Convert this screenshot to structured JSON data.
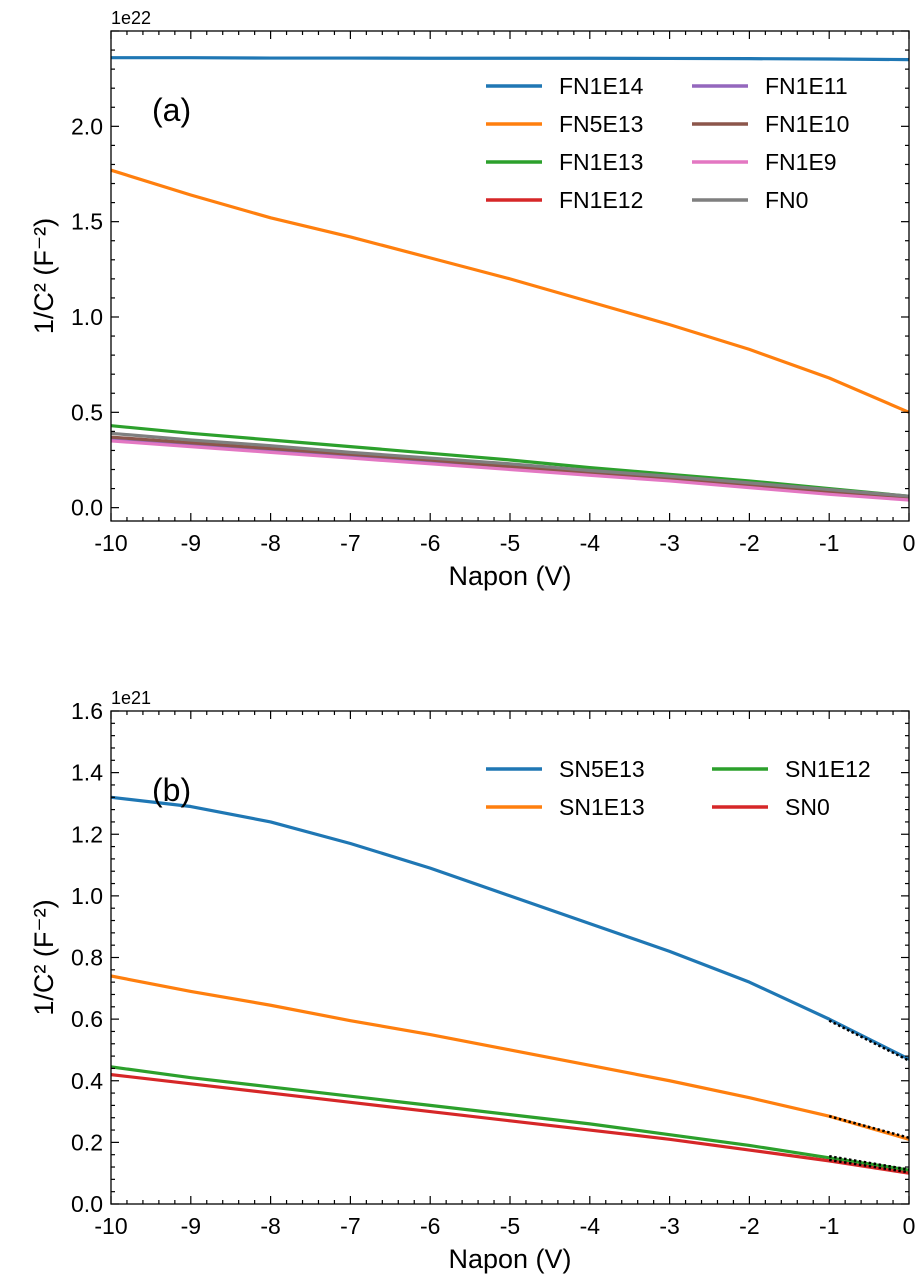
{
  "chart_data": [
    {
      "type": "line",
      "panel_label": "(a)",
      "offset_label": "1e22",
      "xlabel": "Napon (V)",
      "ylabel": "1/C² (F⁻²)",
      "xlim": [
        -10,
        0
      ],
      "ylim": [
        -0.07,
        2.5
      ],
      "xticks": [
        -10,
        -9,
        -8,
        -7,
        -6,
        -5,
        -4,
        -3,
        -2,
        -1,
        0
      ],
      "yticks": [
        0.0,
        0.5,
        1.0,
        1.5,
        2.0
      ],
      "ytick_labels": [
        "0.0",
        "0.5",
        "1.0",
        "1.5",
        "2.0"
      ],
      "grid": false,
      "legend": "top-right",
      "legend_columns": 2,
      "x": [
        -10,
        -9,
        -8,
        -7,
        -6,
        -5,
        -4,
        -3,
        -2,
        -1,
        0
      ],
      "series": [
        {
          "name": "FN1E14",
          "color": "#1f77b4",
          "values": [
            2.36,
            2.36,
            2.358,
            2.358,
            2.357,
            2.357,
            2.357,
            2.356,
            2.355,
            2.353,
            2.35
          ]
        },
        {
          "name": "FN5E13",
          "color": "#ff7f0e",
          "values": [
            1.77,
            1.64,
            1.52,
            1.42,
            1.31,
            1.2,
            1.08,
            0.96,
            0.83,
            0.68,
            0.5
          ]
        },
        {
          "name": "FN1E13",
          "color": "#2ca02c",
          "values": [
            0.43,
            0.39,
            0.355,
            0.32,
            0.285,
            0.25,
            0.21,
            0.175,
            0.14,
            0.1,
            0.06
          ]
        },
        {
          "name": "FN1E12",
          "color": "#d62728",
          "values": [
            0.36,
            0.33,
            0.3,
            0.27,
            0.24,
            0.21,
            0.18,
            0.15,
            0.115,
            0.08,
            0.045
          ]
        },
        {
          "name": "FN1E11",
          "color": "#9467bd",
          "values": [
            0.36,
            0.33,
            0.3,
            0.27,
            0.24,
            0.21,
            0.18,
            0.15,
            0.115,
            0.08,
            0.045
          ]
        },
        {
          "name": "FN1E10",
          "color": "#8c564b",
          "values": [
            0.37,
            0.34,
            0.31,
            0.28,
            0.25,
            0.215,
            0.185,
            0.155,
            0.12,
            0.085,
            0.05
          ]
        },
        {
          "name": "FN1E9",
          "color": "#e377c2",
          "values": [
            0.35,
            0.32,
            0.29,
            0.26,
            0.23,
            0.2,
            0.17,
            0.14,
            0.105,
            0.07,
            0.04
          ]
        },
        {
          "name": "FN0",
          "color": "#7f7f7f",
          "values": [
            0.39,
            0.355,
            0.325,
            0.29,
            0.26,
            0.23,
            0.195,
            0.165,
            0.13,
            0.095,
            0.06
          ]
        }
      ]
    },
    {
      "type": "line",
      "panel_label": "(b)",
      "offset_label": "1e21",
      "xlabel": "Napon (V)",
      "ylabel": "1/C² (F⁻²)",
      "xlim": [
        -10,
        0
      ],
      "ylim": [
        0,
        1.6
      ],
      "xticks": [
        -10,
        -9,
        -8,
        -7,
        -6,
        -5,
        -4,
        -3,
        -2,
        -1,
        0
      ],
      "yticks": [
        0.0,
        0.2,
        0.4,
        0.6,
        0.8,
        1.0,
        1.2,
        1.4,
        1.6
      ],
      "ytick_labels": [
        "0.0",
        "0.2",
        "0.4",
        "0.6",
        "0.8",
        "1.0",
        "1.2",
        "1.4",
        "1.6"
      ],
      "grid": false,
      "legend": "top-right",
      "legend_columns": 2,
      "x": [
        -10,
        -9,
        -8,
        -7,
        -6,
        -5,
        -4,
        -3,
        -2,
        -1,
        0
      ],
      "series": [
        {
          "name": "SN5E13",
          "color": "#1f77b4",
          "values": [
            1.32,
            1.29,
            1.24,
            1.17,
            1.09,
            1.0,
            0.91,
            0.82,
            0.72,
            0.6,
            0.47
          ]
        },
        {
          "name": "SN1E13",
          "color": "#ff7f0e",
          "values": [
            0.74,
            0.69,
            0.645,
            0.595,
            0.55,
            0.5,
            0.45,
            0.4,
            0.345,
            0.285,
            0.21
          ]
        },
        {
          "name": "SN1E12",
          "color": "#2ca02c",
          "values": [
            0.445,
            0.41,
            0.38,
            0.35,
            0.32,
            0.29,
            0.26,
            0.225,
            0.19,
            0.15,
            0.11
          ]
        },
        {
          "name": "SN0",
          "color": "#d62728",
          "values": [
            0.42,
            0.39,
            0.36,
            0.33,
            0.3,
            0.27,
            0.24,
            0.21,
            0.175,
            0.14,
            0.1
          ]
        }
      ],
      "fit_lines": [
        {
          "x": [
            -1,
            0
          ],
          "values": [
            0.595,
            0.465
          ]
        },
        {
          "x": [
            -1,
            0
          ],
          "values": [
            0.285,
            0.215
          ]
        },
        {
          "x": [
            -1,
            0
          ],
          "values": [
            0.155,
            0.112
          ]
        },
        {
          "x": [
            -1,
            0
          ],
          "values": [
            0.143,
            0.103
          ]
        }
      ]
    }
  ]
}
